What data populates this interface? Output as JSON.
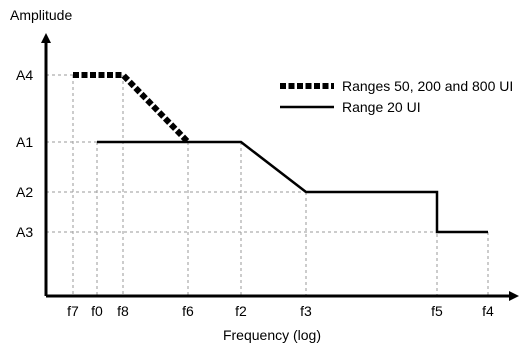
{
  "chart_data": {
    "type": "line",
    "title": "",
    "ylabel": "Amplitude",
    "xlabel": "Frequency (log)",
    "x_scale": "log",
    "grid": false,
    "legend_position": "top-right",
    "x_ticks": [
      "f7",
      "f0",
      "f8",
      "f6",
      "f2",
      "f3",
      "f5",
      "f4"
    ],
    "y_ticks": [
      "A4",
      "A1",
      "A2",
      "A3"
    ],
    "series": [
      {
        "name": "Ranges 50, 200 and 800 UI",
        "style": "dotted",
        "points": [
          {
            "x": "f7",
            "y": "A4"
          },
          {
            "x": "f8",
            "y": "A4"
          },
          {
            "x": "f6",
            "y": "A1"
          }
        ]
      },
      {
        "name": "Range 20 UI",
        "style": "solid",
        "points": [
          {
            "x": "f0",
            "y": "A1"
          },
          {
            "x": "f2",
            "y": "A1"
          },
          {
            "x": "f3",
            "y": "A2"
          },
          {
            "x": "f5",
            "y": "A2"
          },
          {
            "x": "f5",
            "y": "A3"
          },
          {
            "x": "f4",
            "y": "A3"
          }
        ]
      }
    ],
    "colors": {
      "line": "#000000",
      "guide": "#9a9a9a"
    }
  }
}
